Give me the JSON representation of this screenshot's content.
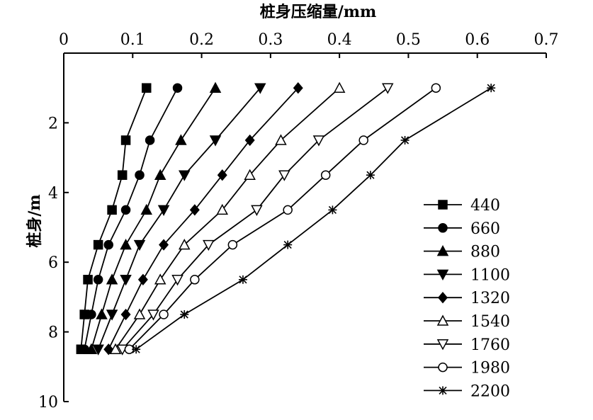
{
  "chart_data": {
    "type": "line",
    "x_axis": {
      "label": "桩身压缩量/mm",
      "range": [
        0,
        0.7
      ],
      "ticks": [
        0,
        0.1,
        0.2,
        0.3,
        0.4,
        0.5,
        0.6,
        0.7
      ],
      "tick_labels": [
        "0",
        "0.1",
        "0.2",
        "0.3",
        "0.4",
        "0.5",
        "0.6",
        "0.7"
      ],
      "position": "top"
    },
    "y_axis": {
      "label": "桩身/m",
      "range": [
        0,
        10
      ],
      "inverted": true,
      "ticks": [
        2,
        4,
        6,
        8,
        10
      ],
      "tick_labels": [
        "2",
        "4",
        "6",
        "8",
        "10"
      ]
    },
    "depths": [
      1.0,
      2.5,
      3.5,
      4.5,
      5.5,
      6.5,
      7.5,
      8.5
    ],
    "series": [
      {
        "name": "440",
        "marker": "square-filled",
        "x": [
          0.12,
          0.09,
          0.085,
          0.07,
          0.05,
          0.035,
          0.03,
          0.025
        ]
      },
      {
        "name": "660",
        "marker": "circle-filled",
        "x": [
          0.165,
          0.125,
          0.11,
          0.09,
          0.065,
          0.05,
          0.04,
          0.03
        ]
      },
      {
        "name": "880",
        "marker": "triangle-up-filled",
        "x": [
          0.22,
          0.17,
          0.14,
          0.12,
          0.09,
          0.07,
          0.055,
          0.04
        ]
      },
      {
        "name": "1100",
        "marker": "triangle-down-filled",
        "x": [
          0.285,
          0.22,
          0.175,
          0.145,
          0.11,
          0.09,
          0.07,
          0.05
        ]
      },
      {
        "name": "1320",
        "marker": "diamond-filled",
        "x": [
          0.34,
          0.27,
          0.23,
          0.19,
          0.145,
          0.115,
          0.09,
          0.065
        ]
      },
      {
        "name": "1540",
        "marker": "triangle-up-open",
        "x": [
          0.4,
          0.315,
          0.27,
          0.23,
          0.175,
          0.14,
          0.11,
          0.075
        ]
      },
      {
        "name": "1760",
        "marker": "triangle-down-open",
        "x": [
          0.47,
          0.37,
          0.32,
          0.28,
          0.21,
          0.165,
          0.13,
          0.085
        ]
      },
      {
        "name": "1980",
        "marker": "circle-open",
        "x": [
          0.54,
          0.435,
          0.38,
          0.325,
          0.245,
          0.19,
          0.145,
          0.095
        ]
      },
      {
        "name": "2200",
        "marker": "asterisk",
        "x": [
          0.62,
          0.495,
          0.445,
          0.39,
          0.325,
          0.26,
          0.175,
          0.105
        ]
      }
    ],
    "legend": {
      "placement": "right"
    },
    "grid": false
  }
}
